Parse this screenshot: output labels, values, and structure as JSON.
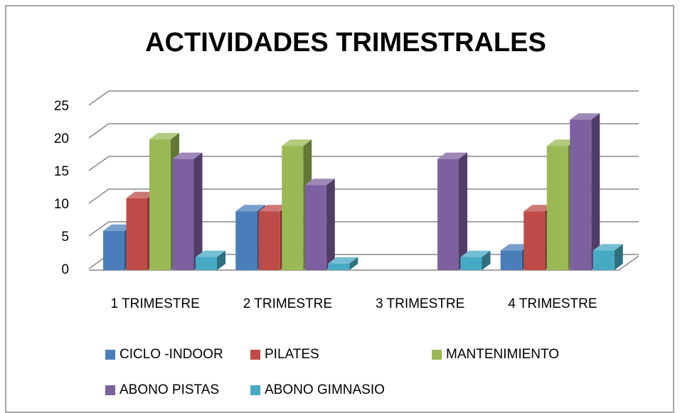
{
  "chart_data": {
    "type": "bar3d",
    "title": "ACTIVIDADES TRIMESTRALES",
    "categories": [
      "1 TRIMESTRE",
      "2 TRIMESTRE",
      "3 TRIMESTRE",
      "4 TRIMESTRE"
    ],
    "series": [
      {
        "name": "CICLO -INDOOR",
        "color": "#4a7ebb",
        "values": [
          6,
          9,
          null,
          3
        ]
      },
      {
        "name": "PILATES",
        "color": "#be4b48",
        "values": [
          11,
          9,
          null,
          9
        ]
      },
      {
        "name": "MANTENIMIENTO",
        "color": "#98b954",
        "values": [
          20,
          19,
          null,
          19
        ]
      },
      {
        "name": "ABONO PISTAS",
        "color": "#7d60a0",
        "values": [
          17,
          13,
          17,
          23
        ]
      },
      {
        "name": "ABONO GIMNASIO",
        "color": "#46aac5",
        "values": [
          2,
          1,
          2,
          3
        ]
      }
    ],
    "ylim": [
      0,
      25
    ],
    "yticks": [
      0,
      5,
      10,
      15,
      20,
      25
    ],
    "grid": true,
    "legend": "bottom"
  }
}
